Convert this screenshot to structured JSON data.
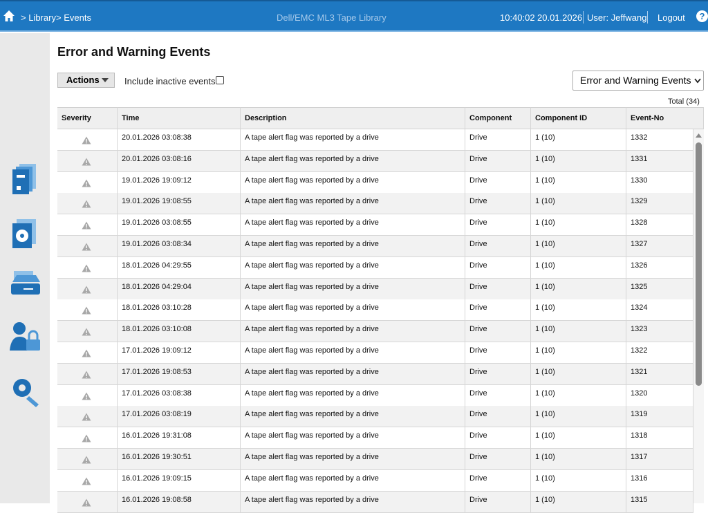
{
  "header": {
    "breadcrumb": [
      "> Library",
      "> Events"
    ],
    "app_title": "Dell/EMC ML3 Tape Library",
    "time": "10:40:02",
    "date": "20.01.2026",
    "user": "User: Jeffwang",
    "logout": "Logout",
    "help": "?"
  },
  "page": {
    "title": "Error and Warning Events",
    "actions": "Actions",
    "include_inactive": "Include inactive events",
    "filter": "Error and Warning Events",
    "total": "Total (34)"
  },
  "table": {
    "columns": [
      "Severity",
      "Time",
      "Description",
      "Component",
      "Component ID",
      "Event-No"
    ],
    "rows": [
      [
        "20.01.2026 03:08:38",
        "A tape alert flag was reported by a drive",
        "Drive",
        "1 (10)",
        "1332"
      ],
      [
        "20.01.2026 03:08:16",
        "A tape alert flag was reported by a drive",
        "Drive",
        "1 (10)",
        "1331"
      ],
      [
        "19.01.2026 19:09:12",
        "A tape alert flag was reported by a drive",
        "Drive",
        "1 (10)",
        "1330"
      ],
      [
        "19.01.2026 19:08:55",
        "A tape alert flag was reported by a drive",
        "Drive",
        "1 (10)",
        "1329"
      ],
      [
        "19.01.2026 03:08:55",
        "A tape alert flag was reported by a drive",
        "Drive",
        "1 (10)",
        "1328"
      ],
      [
        "19.01.2026 03:08:34",
        "A tape alert flag was reported by a drive",
        "Drive",
        "1 (10)",
        "1327"
      ],
      [
        "18.01.2026 04:29:55",
        "A tape alert flag was reported by a drive",
        "Drive",
        "1 (10)",
        "1326"
      ],
      [
        "18.01.2026 04:29:04",
        "A tape alert flag was reported by a drive",
        "Drive",
        "1 (10)",
        "1325"
      ],
      [
        "18.01.2026 03:10:28",
        "A tape alert flag was reported by a drive",
        "Drive",
        "1 (10)",
        "1324"
      ],
      [
        "18.01.2026 03:10:08",
        "A tape alert flag was reported by a drive",
        "Drive",
        "1 (10)",
        "1323"
      ],
      [
        "17.01.2026 19:09:12",
        "A tape alert flag was reported by a drive",
        "Drive",
        "1 (10)",
        "1322"
      ],
      [
        "17.01.2026 19:08:53",
        "A tape alert flag was reported by a drive",
        "Drive",
        "1 (10)",
        "1321"
      ],
      [
        "17.01.2026 03:08:38",
        "A tape alert flag was reported by a drive",
        "Drive",
        "1 (10)",
        "1320"
      ],
      [
        "17.01.2026 03:08:19",
        "A tape alert flag was reported by a drive",
        "Drive",
        "1 (10)",
        "1319"
      ],
      [
        "16.01.2026 19:31:08",
        "A tape alert flag was reported by a drive",
        "Drive",
        "1 (10)",
        "1318"
      ],
      [
        "16.01.2026 19:30:51",
        "A tape alert flag was reported by a drive",
        "Drive",
        "1 (10)",
        "1317"
      ],
      [
        "16.01.2026 19:09:15",
        "A tape alert flag was reported by a drive",
        "Drive",
        "1 (10)",
        "1316"
      ],
      [
        "16.01.2026 19:08:58",
        "A tape alert flag was reported by a drive",
        "Drive",
        "1 (10)",
        "1315"
      ]
    ]
  }
}
